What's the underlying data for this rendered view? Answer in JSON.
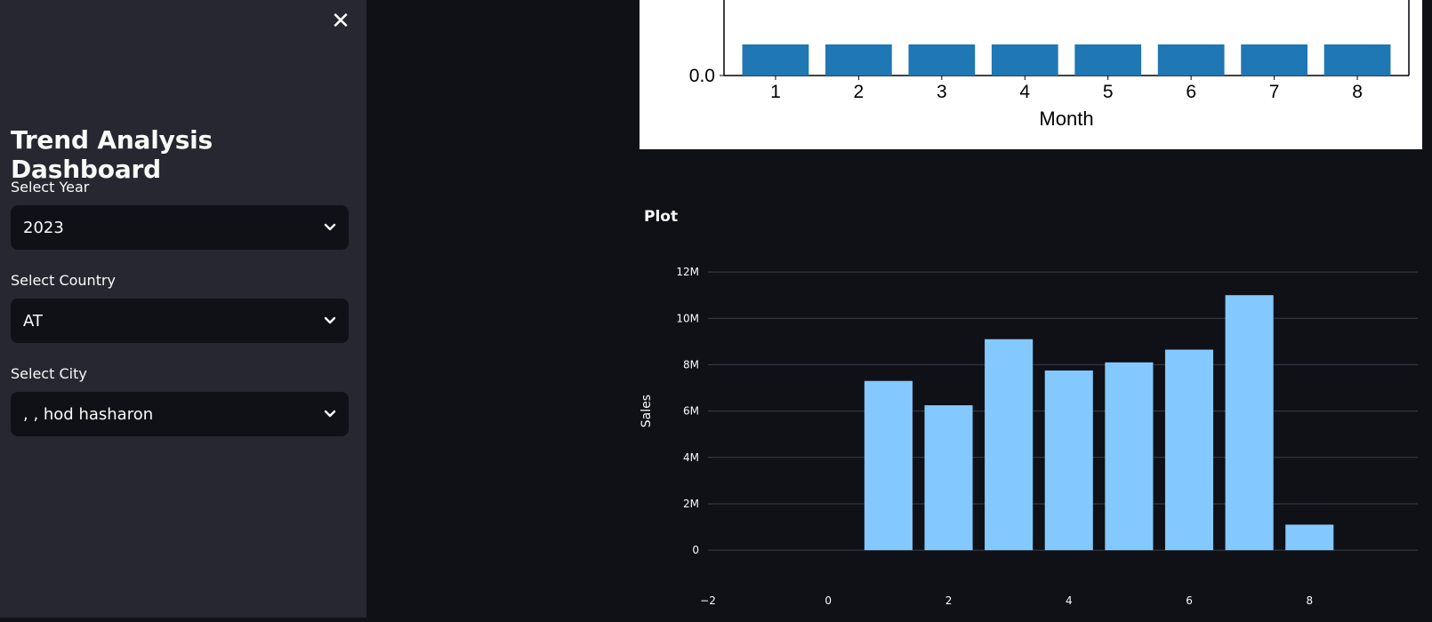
{
  "sidebar": {
    "close_icon": "close-icon",
    "title": "Trend Analysis Dashboard",
    "filters": [
      {
        "label": "Select Year",
        "value": "2023"
      },
      {
        "label": "Select Country",
        "value": "AT"
      },
      {
        "label": "Select City",
        "value": ", , hod hasharon"
      }
    ]
  },
  "main": {
    "plot_title": "Plot"
  },
  "colors": {
    "sidebar_bg": "#262730",
    "app_bg": "#0f1117",
    "top_bar": "#1f77b4",
    "plot_bar": "#83c9ff"
  },
  "chart_data": [
    {
      "type": "bar",
      "categories": [
        1,
        2,
        3,
        4,
        5,
        6,
        7,
        8
      ],
      "xlabel": "Month",
      "ytick_visible": [
        "0.0"
      ],
      "xticks": [
        "1",
        "2",
        "3",
        "4",
        "5",
        "6",
        "7",
        "8"
      ]
    },
    {
      "type": "bar",
      "x": [
        1,
        2,
        3,
        4,
        5,
        6,
        7,
        8
      ],
      "values": [
        7300000,
        6250000,
        9100000,
        7750000,
        8100000,
        8650000,
        11000000,
        1100000
      ],
      "xlabel": "",
      "ylabel": "Sales",
      "xlim": [
        -2,
        9.8
      ],
      "ylim": [
        -800000,
        13000000
      ],
      "xticks": [
        "−2",
        "0",
        "2",
        "4",
        "6",
        "8"
      ],
      "yticks": [
        "0",
        "2M",
        "4M",
        "6M",
        "8M",
        "10M",
        "12M"
      ],
      "grid": true
    }
  ]
}
